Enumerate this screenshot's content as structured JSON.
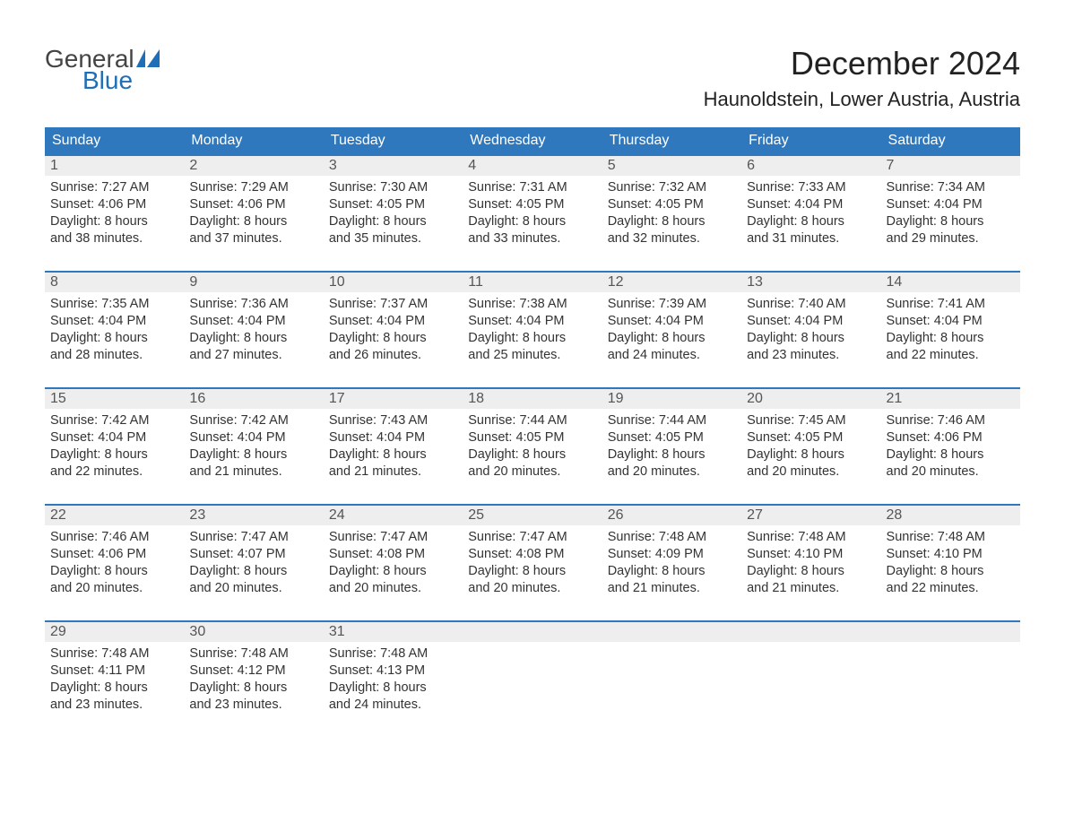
{
  "logo": {
    "text_general": "General",
    "text_blue": "Blue",
    "sail_color": "#1e6fb8"
  },
  "title": "December 2024",
  "location": "Haunoldstein, Lower Austria, Austria",
  "colors": {
    "header_bg": "#2f78bd",
    "header_text": "#ffffff",
    "daynum_bg": "#eeeeee",
    "week_border": "#2f78bd",
    "body_text": "#333333",
    "logo_gray": "#444444"
  },
  "weekdays": [
    "Sunday",
    "Monday",
    "Tuesday",
    "Wednesday",
    "Thursday",
    "Friday",
    "Saturday"
  ],
  "weeks": [
    [
      {
        "day": "1",
        "sunrise": "Sunrise: 7:27 AM",
        "sunset": "Sunset: 4:06 PM",
        "dl1": "Daylight: 8 hours",
        "dl2": "and 38 minutes."
      },
      {
        "day": "2",
        "sunrise": "Sunrise: 7:29 AM",
        "sunset": "Sunset: 4:06 PM",
        "dl1": "Daylight: 8 hours",
        "dl2": "and 37 minutes."
      },
      {
        "day": "3",
        "sunrise": "Sunrise: 7:30 AM",
        "sunset": "Sunset: 4:05 PM",
        "dl1": "Daylight: 8 hours",
        "dl2": "and 35 minutes."
      },
      {
        "day": "4",
        "sunrise": "Sunrise: 7:31 AM",
        "sunset": "Sunset: 4:05 PM",
        "dl1": "Daylight: 8 hours",
        "dl2": "and 33 minutes."
      },
      {
        "day": "5",
        "sunrise": "Sunrise: 7:32 AM",
        "sunset": "Sunset: 4:05 PM",
        "dl1": "Daylight: 8 hours",
        "dl2": "and 32 minutes."
      },
      {
        "day": "6",
        "sunrise": "Sunrise: 7:33 AM",
        "sunset": "Sunset: 4:04 PM",
        "dl1": "Daylight: 8 hours",
        "dl2": "and 31 minutes."
      },
      {
        "day": "7",
        "sunrise": "Sunrise: 7:34 AM",
        "sunset": "Sunset: 4:04 PM",
        "dl1": "Daylight: 8 hours",
        "dl2": "and 29 minutes."
      }
    ],
    [
      {
        "day": "8",
        "sunrise": "Sunrise: 7:35 AM",
        "sunset": "Sunset: 4:04 PM",
        "dl1": "Daylight: 8 hours",
        "dl2": "and 28 minutes."
      },
      {
        "day": "9",
        "sunrise": "Sunrise: 7:36 AM",
        "sunset": "Sunset: 4:04 PM",
        "dl1": "Daylight: 8 hours",
        "dl2": "and 27 minutes."
      },
      {
        "day": "10",
        "sunrise": "Sunrise: 7:37 AM",
        "sunset": "Sunset: 4:04 PM",
        "dl1": "Daylight: 8 hours",
        "dl2": "and 26 minutes."
      },
      {
        "day": "11",
        "sunrise": "Sunrise: 7:38 AM",
        "sunset": "Sunset: 4:04 PM",
        "dl1": "Daylight: 8 hours",
        "dl2": "and 25 minutes."
      },
      {
        "day": "12",
        "sunrise": "Sunrise: 7:39 AM",
        "sunset": "Sunset: 4:04 PM",
        "dl1": "Daylight: 8 hours",
        "dl2": "and 24 minutes."
      },
      {
        "day": "13",
        "sunrise": "Sunrise: 7:40 AM",
        "sunset": "Sunset: 4:04 PM",
        "dl1": "Daylight: 8 hours",
        "dl2": "and 23 minutes."
      },
      {
        "day": "14",
        "sunrise": "Sunrise: 7:41 AM",
        "sunset": "Sunset: 4:04 PM",
        "dl1": "Daylight: 8 hours",
        "dl2": "and 22 minutes."
      }
    ],
    [
      {
        "day": "15",
        "sunrise": "Sunrise: 7:42 AM",
        "sunset": "Sunset: 4:04 PM",
        "dl1": "Daylight: 8 hours",
        "dl2": "and 22 minutes."
      },
      {
        "day": "16",
        "sunrise": "Sunrise: 7:42 AM",
        "sunset": "Sunset: 4:04 PM",
        "dl1": "Daylight: 8 hours",
        "dl2": "and 21 minutes."
      },
      {
        "day": "17",
        "sunrise": "Sunrise: 7:43 AM",
        "sunset": "Sunset: 4:04 PM",
        "dl1": "Daylight: 8 hours",
        "dl2": "and 21 minutes."
      },
      {
        "day": "18",
        "sunrise": "Sunrise: 7:44 AM",
        "sunset": "Sunset: 4:05 PM",
        "dl1": "Daylight: 8 hours",
        "dl2": "and 20 minutes."
      },
      {
        "day": "19",
        "sunrise": "Sunrise: 7:44 AM",
        "sunset": "Sunset: 4:05 PM",
        "dl1": "Daylight: 8 hours",
        "dl2": "and 20 minutes."
      },
      {
        "day": "20",
        "sunrise": "Sunrise: 7:45 AM",
        "sunset": "Sunset: 4:05 PM",
        "dl1": "Daylight: 8 hours",
        "dl2": "and 20 minutes."
      },
      {
        "day": "21",
        "sunrise": "Sunrise: 7:46 AM",
        "sunset": "Sunset: 4:06 PM",
        "dl1": "Daylight: 8 hours",
        "dl2": "and 20 minutes."
      }
    ],
    [
      {
        "day": "22",
        "sunrise": "Sunrise: 7:46 AM",
        "sunset": "Sunset: 4:06 PM",
        "dl1": "Daylight: 8 hours",
        "dl2": "and 20 minutes."
      },
      {
        "day": "23",
        "sunrise": "Sunrise: 7:47 AM",
        "sunset": "Sunset: 4:07 PM",
        "dl1": "Daylight: 8 hours",
        "dl2": "and 20 minutes."
      },
      {
        "day": "24",
        "sunrise": "Sunrise: 7:47 AM",
        "sunset": "Sunset: 4:08 PM",
        "dl1": "Daylight: 8 hours",
        "dl2": "and 20 minutes."
      },
      {
        "day": "25",
        "sunrise": "Sunrise: 7:47 AM",
        "sunset": "Sunset: 4:08 PM",
        "dl1": "Daylight: 8 hours",
        "dl2": "and 20 minutes."
      },
      {
        "day": "26",
        "sunrise": "Sunrise: 7:48 AM",
        "sunset": "Sunset: 4:09 PM",
        "dl1": "Daylight: 8 hours",
        "dl2": "and 21 minutes."
      },
      {
        "day": "27",
        "sunrise": "Sunrise: 7:48 AM",
        "sunset": "Sunset: 4:10 PM",
        "dl1": "Daylight: 8 hours",
        "dl2": "and 21 minutes."
      },
      {
        "day": "28",
        "sunrise": "Sunrise: 7:48 AM",
        "sunset": "Sunset: 4:10 PM",
        "dl1": "Daylight: 8 hours",
        "dl2": "and 22 minutes."
      }
    ],
    [
      {
        "day": "29",
        "sunrise": "Sunrise: 7:48 AM",
        "sunset": "Sunset: 4:11 PM",
        "dl1": "Daylight: 8 hours",
        "dl2": "and 23 minutes."
      },
      {
        "day": "30",
        "sunrise": "Sunrise: 7:48 AM",
        "sunset": "Sunset: 4:12 PM",
        "dl1": "Daylight: 8 hours",
        "dl2": "and 23 minutes."
      },
      {
        "day": "31",
        "sunrise": "Sunrise: 7:48 AM",
        "sunset": "Sunset: 4:13 PM",
        "dl1": "Daylight: 8 hours",
        "dl2": "and 24 minutes."
      },
      {
        "empty": true
      },
      {
        "empty": true
      },
      {
        "empty": true
      },
      {
        "empty": true
      }
    ]
  ]
}
